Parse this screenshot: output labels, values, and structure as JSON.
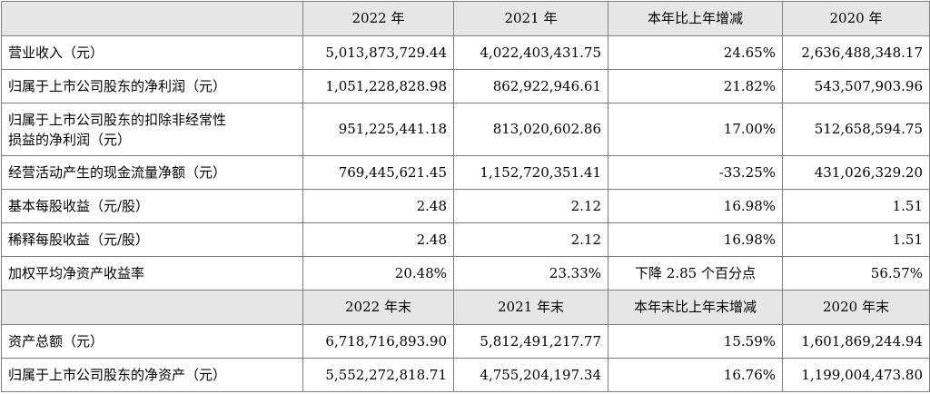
{
  "header1": [
    "",
    "2022 年",
    "2021 年",
    "本年比上年增减",
    "2020 年"
  ],
  "section1_rows": [
    {
      "label": "营业收入（元）",
      "v2022": "5,013,873,729.44",
      "v2021": "4,022,403,431.75",
      "change": "24.65%",
      "v2020": "2,636,488,348.17"
    },
    {
      "label": "归属于上市公司股东的净利润（元）",
      "v2022": "1,051,228,828.98",
      "v2021": "862,922,946.61",
      "change": "21.82%",
      "v2020": "543,507,903.96"
    },
    {
      "label_line1": "归属于上市公司股东的扣除非经常性",
      "label_line2": "损益的净利润（元）",
      "v2022": "951,225,441.18",
      "v2021": "813,020,602.86",
      "change": "17.00%",
      "v2020": "512,658,594.75"
    },
    {
      "label": "经营活动产生的现金流量净额（元）",
      "v2022": "769,445,621.45",
      "v2021": "1,152,720,351.41",
      "change": "-33.25%",
      "v2020": "431,026,329.20"
    },
    {
      "label": "基本每股收益（元/股）",
      "v2022": "2.48",
      "v2021": "2.12",
      "change": "16.98%",
      "v2020": "1.51"
    },
    {
      "label": "稀释每股收益（元/股）",
      "v2022": "2.48",
      "v2021": "2.12",
      "change": "16.98%",
      "v2020": "1.51"
    },
    {
      "label": "加权平均净资产收益率",
      "v2022": "20.48%",
      "v2021": "23.33%",
      "change": "下降 2.85 个百分点",
      "v2020": "56.57%"
    }
  ],
  "header2": [
    "",
    "2022 年末",
    "2021 年末",
    "本年末比上年末增减",
    "2020 年末"
  ],
  "section2_rows": [
    {
      "label": "资产总额（元）",
      "v2022": "6,718,716,893.90",
      "v2021": "5,812,491,217.77",
      "change": "15.59%",
      "v2020": "1,601,869,244.94"
    },
    {
      "label": "归属于上市公司股东的净资产（元）",
      "v2022": "5,552,272,818.71",
      "v2021": "4,755,204,197.34",
      "change": "16.76%",
      "v2020": "1,199,004,473.80"
    }
  ]
}
